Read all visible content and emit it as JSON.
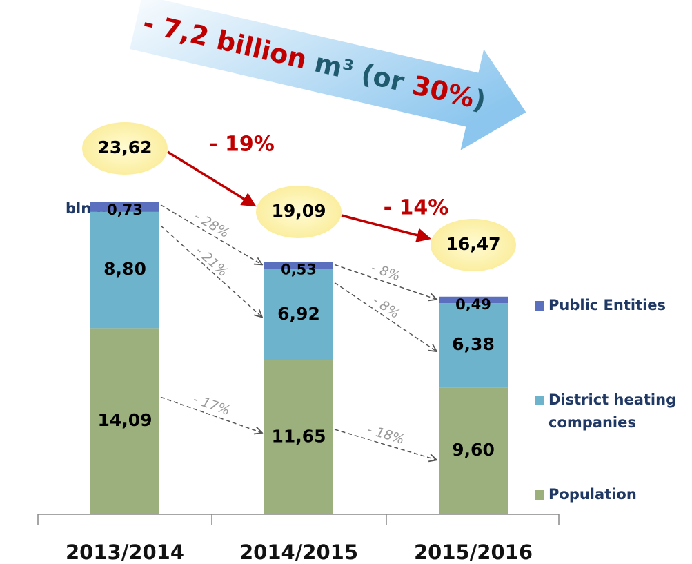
{
  "chart_data": {
    "type": "stacked_bar",
    "ylabel": "bln m³",
    "categories": [
      "2013/2014",
      "2014/2015",
      "2015/2016"
    ],
    "series": [
      {
        "name": "Population",
        "color": "#9bb07d",
        "values": [
          14.09,
          11.65,
          9.6
        ],
        "value_labels": [
          "14,09",
          "11,65",
          "9,60"
        ],
        "changes": [
          "- 17%",
          "- 18%"
        ]
      },
      {
        "name": "District heating companies",
        "color": "#6db3cb",
        "values": [
          8.8,
          6.92,
          6.38
        ],
        "value_labels": [
          "8,80",
          "6,92",
          "6,38"
        ],
        "changes": [
          "- 21%",
          "- 8%"
        ]
      },
      {
        "name": "Public Entities",
        "color": "#5a6fbd",
        "values": [
          0.73,
          0.53,
          0.49
        ],
        "value_labels": [
          "0,73",
          "0,53",
          "0,49"
        ],
        "changes": [
          "- 28%",
          "- 8%"
        ]
      }
    ],
    "totals": [
      23.62,
      19.09,
      16.47
    ],
    "total_labels": [
      "23,62",
      "19,09",
      "16,47"
    ],
    "total_changes": [
      "- 19%",
      "- 14%"
    ],
    "banner": [
      {
        "text": "- 7,2 billion ",
        "color": "#c00000"
      },
      {
        "text": "m³ (or ",
        "color": "#1f5a6e"
      },
      {
        "text": "30%",
        "color": "#c00000"
      },
      {
        "text": ")",
        "color": "#1f5a6e"
      }
    ],
    "ylim": [
      0,
      25
    ]
  }
}
